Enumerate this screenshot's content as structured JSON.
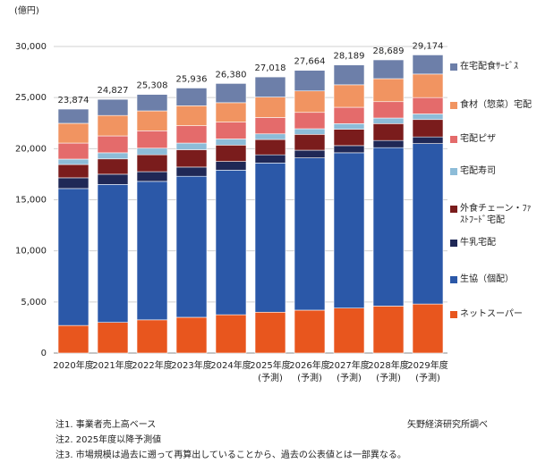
{
  "chart_data": {
    "type": "stacked_bar",
    "unit_label": "(億円)",
    "categories": [
      [
        "2020年度"
      ],
      [
        "2021年度"
      ],
      [
        "2022年度"
      ],
      [
        "2023年度"
      ],
      [
        "2024年度"
      ],
      [
        "2025年度",
        "(予測)"
      ],
      [
        "2026年度",
        "(予測)"
      ],
      [
        "2027年度",
        "(予測)"
      ],
      [
        "2028年度",
        "(予測)"
      ],
      [
        "2029年度",
        "(予測)"
      ]
    ],
    "series": [
      {
        "name": "ネットスーパー",
        "color": "#e8561e",
        "values": [
          2700,
          3000,
          3250,
          3500,
          3750,
          4000,
          4200,
          4400,
          4600,
          4800
        ]
      },
      {
        "name": "生協（個配）",
        "color": "#2b58a8",
        "values": [
          13400,
          13500,
          13550,
          13800,
          14150,
          14600,
          14900,
          15200,
          15500,
          15700
        ]
      },
      {
        "name": "牛乳宅配",
        "color": "#1f2856",
        "values": [
          1050,
          1000,
          950,
          900,
          850,
          800,
          750,
          700,
          700,
          650
        ]
      },
      {
        "name": "外食チェーン・ﾌｧｽﾄﾌｰﾄﾞ宅配",
        "color": "#7a1c1c",
        "values": [
          1300,
          1500,
          1650,
          1700,
          1600,
          1500,
          1550,
          1600,
          1650,
          1700
        ]
      },
      {
        "name": "宅配寿司",
        "color": "#8dbcd8",
        "values": [
          530,
          600,
          650,
          650,
          600,
          550,
          550,
          550,
          550,
          550
        ]
      },
      {
        "name": "宅配ピザ",
        "color": "#e46b6b",
        "values": [
          1570,
          1650,
          1700,
          1700,
          1650,
          1600,
          1600,
          1600,
          1600,
          1600
        ]
      },
      {
        "name": "食材（惣菜）宅配",
        "color": "#f19461",
        "values": [
          1930,
          2000,
          1950,
          1950,
          1900,
          2000,
          2100,
          2200,
          2250,
          2300
        ]
      },
      {
        "name": "在宅配食ｻｰﾋﾞｽ",
        "color": "#6d7fa9",
        "values": [
          1394,
          1577,
          1608,
          1736,
          1880,
          1968,
          2014,
          1939,
          1839,
          1874
        ]
      }
    ],
    "totals": [
      23874,
      24827,
      25308,
      25936,
      26380,
      27018,
      27664,
      28189,
      28689,
      29174
    ],
    "total_labels": [
      "23,874",
      "24,827",
      "25,308",
      "25,936",
      "26,380",
      "27,018",
      "27,664",
      "28,189",
      "28,689",
      "29,174"
    ],
    "ylim": [
      0,
      30000
    ],
    "yticks": [
      0,
      {
        "value": 5000,
        "label": "5,000"
      },
      {
        "value": 10000,
        "label": "10,000"
      },
      {
        "value": 15000,
        "label": "15,000"
      },
      {
        "value": 20000,
        "label": "20,000"
      },
      {
        "value": 25000,
        "label": "25,000"
      },
      {
        "value": 30000,
        "label": "30,000"
      }
    ],
    "grid": true,
    "notes": [
      "注1. 事業者売上高ベース",
      "注2. 2025年度以降予測値",
      "注3. 市場規模は過去に遡って再算出していることから、過去の公表値とは一部異なる。"
    ],
    "source": "矢野経済研究所調べ"
  }
}
